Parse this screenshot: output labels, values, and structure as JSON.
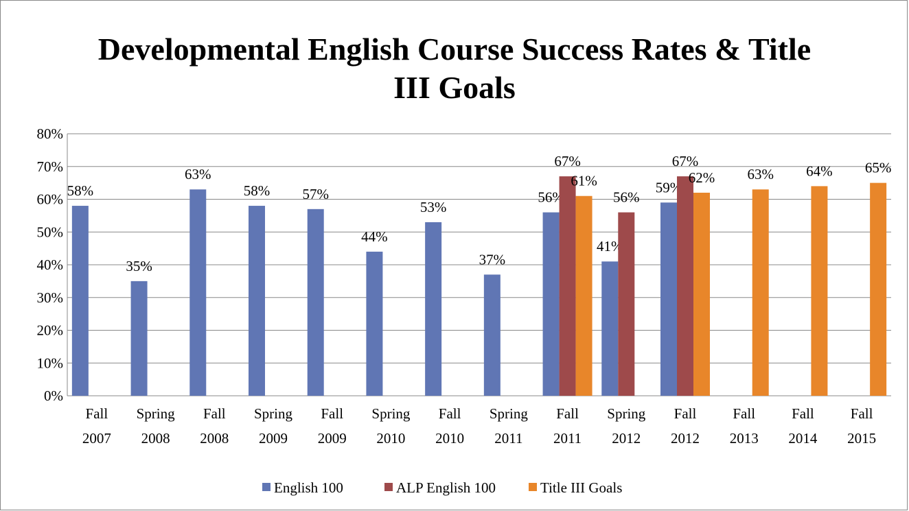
{
  "chart_data": {
    "type": "bar",
    "title": "Developmental English Course Success Rates & Title III Goals",
    "categories": [
      "Fall 2007",
      "Spring 2008",
      "Fall 2008",
      "Spring 2009",
      "Fall 2009",
      "Spring 2010",
      "Fall 2010",
      "Spring 2011",
      "Fall 2011",
      "Spring 2012",
      "Fall 2012",
      "Fall 2013",
      "Fall 2014",
      "Fall 2015"
    ],
    "series": [
      {
        "name": "English 100",
        "color": "#6076b4",
        "values": [
          58,
          35,
          63,
          58,
          57,
          44,
          53,
          37,
          56,
          41,
          59,
          null,
          null,
          null
        ],
        "value_labels": [
          "58%",
          "35%",
          "63%",
          "58%",
          "57%",
          "44%",
          "53%",
          "37%",
          "56%",
          "41%",
          "59%",
          null,
          null,
          null
        ]
      },
      {
        "name": "ALP English 100",
        "color": "#9e4a4b",
        "values": [
          null,
          null,
          null,
          null,
          null,
          null,
          null,
          null,
          67,
          56,
          67,
          null,
          null,
          null
        ],
        "value_labels": [
          null,
          null,
          null,
          null,
          null,
          null,
          null,
          null,
          "67%",
          "56%",
          "67%",
          null,
          null,
          null
        ]
      },
      {
        "name": "Title III Goals",
        "color": "#e8862a",
        "values": [
          null,
          null,
          null,
          null,
          null,
          null,
          null,
          null,
          61,
          null,
          62,
          63,
          64,
          65
        ],
        "value_labels": [
          null,
          null,
          null,
          null,
          null,
          null,
          null,
          null,
          "61%",
          null,
          "62%",
          "63%",
          "64%",
          "65%"
        ]
      }
    ],
    "ylim": [
      0,
      80
    ],
    "yticks": [
      {
        "value": 0,
        "label": "0%"
      },
      {
        "value": 10,
        "label": "10%"
      },
      {
        "value": 20,
        "label": "20%"
      },
      {
        "value": 30,
        "label": "30%"
      },
      {
        "value": 40,
        "label": "40%"
      },
      {
        "value": 50,
        "label": "50%"
      },
      {
        "value": 60,
        "label": "60%"
      },
      {
        "value": 70,
        "label": "70%"
      },
      {
        "value": 80,
        "label": "80%"
      }
    ],
    "grid": true,
    "legend": "bottom"
  }
}
